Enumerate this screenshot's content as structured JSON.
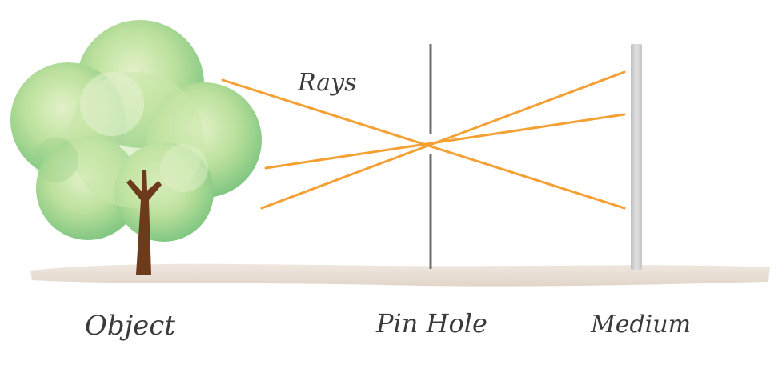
{
  "labels": {
    "rays": "Rays",
    "object": "Object",
    "pinhole": "Pin Hole",
    "medium": "Medium"
  },
  "colors": {
    "ray": "#f5a033",
    "tree_light": "#cfe8ad",
    "tree_mid": "#a3d58a",
    "tree_dark": "#6fbf73",
    "trunk": "#6b3b1c",
    "ground": "#e8ddd3",
    "pinhole_bar": "#6e6e6e",
    "medium_bar": "#cfcfcf"
  },
  "icons": {
    "object": "tree-icon"
  }
}
